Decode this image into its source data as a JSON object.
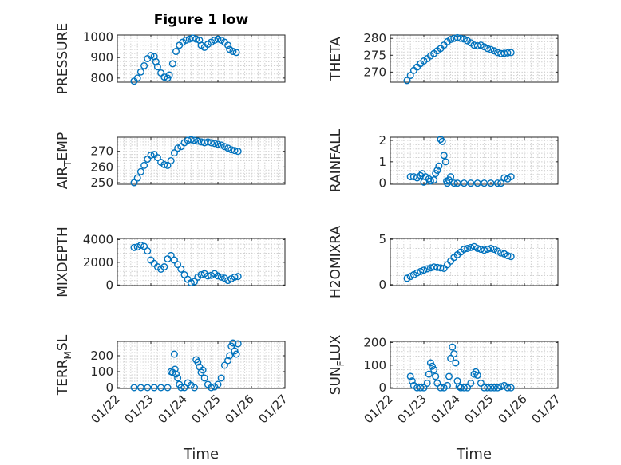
{
  "figure_title": "Figure 1 low",
  "chart_data": {
    "type": "scatter",
    "marker_color": "#0072BD",
    "grid": true,
    "x_ticks": [
      "01/22",
      "01/23",
      "01/24",
      "01/25",
      "01/26",
      "01/27"
    ],
    "x_range": [
      "01/22",
      "01/27"
    ],
    "panels": [
      {
        "ylabel": "PRESSURE",
        "ylabel_sub": "",
        "ylabel_tail": "",
        "ylim": [
          780,
          1010
        ],
        "yticks": [
          800,
          900,
          1000
        ],
        "show_xlabels": false,
        "title": "Figure 1 low",
        "points": [
          [
            0.5,
            785
          ],
          [
            0.6,
            800
          ],
          [
            0.7,
            830
          ],
          [
            0.8,
            860
          ],
          [
            0.9,
            895
          ],
          [
            1.0,
            910
          ],
          [
            1.1,
            905
          ],
          [
            1.15,
            880
          ],
          [
            1.2,
            855
          ],
          [
            1.3,
            825
          ],
          [
            1.4,
            805
          ],
          [
            1.5,
            800
          ],
          [
            1.55,
            815
          ],
          [
            1.65,
            870
          ],
          [
            1.75,
            930
          ],
          [
            1.85,
            960
          ],
          [
            1.95,
            975
          ],
          [
            2.05,
            985
          ],
          [
            2.15,
            990
          ],
          [
            2.25,
            995
          ],
          [
            2.35,
            990
          ],
          [
            2.45,
            985
          ],
          [
            2.5,
            960
          ],
          [
            2.6,
            950
          ],
          [
            2.7,
            965
          ],
          [
            2.8,
            975
          ],
          [
            2.9,
            985
          ],
          [
            3.0,
            990
          ],
          [
            3.1,
            985
          ],
          [
            3.2,
            975
          ],
          [
            3.3,
            960
          ],
          [
            3.35,
            940
          ],
          [
            3.45,
            930
          ],
          [
            3.55,
            925
          ]
        ]
      },
      {
        "ylabel": "THETA",
        "ylabel_sub": "",
        "ylabel_tail": "",
        "ylim": [
          267,
          281
        ],
        "yticks": [
          270,
          275,
          280
        ],
        "show_xlabels": false,
        "points": [
          [
            0.5,
            267.5
          ],
          [
            0.6,
            269
          ],
          [
            0.7,
            270.5
          ],
          [
            0.8,
            271.5
          ],
          [
            0.9,
            272.5
          ],
          [
            1.0,
            273.3
          ],
          [
            1.1,
            274
          ],
          [
            1.2,
            274.8
          ],
          [
            1.3,
            275.5
          ],
          [
            1.4,
            276.3
          ],
          [
            1.5,
            277
          ],
          [
            1.6,
            278
          ],
          [
            1.7,
            279
          ],
          [
            1.8,
            279.7
          ],
          [
            1.9,
            280
          ],
          [
            2.0,
            280.2
          ],
          [
            2.1,
            280
          ],
          [
            2.2,
            279.8
          ],
          [
            2.3,
            279.3
          ],
          [
            2.4,
            278.7
          ],
          [
            2.5,
            278
          ],
          [
            2.6,
            277.8
          ],
          [
            2.7,
            278
          ],
          [
            2.8,
            277.5
          ],
          [
            2.9,
            277
          ],
          [
            3.0,
            276.7
          ],
          [
            3.1,
            276.3
          ],
          [
            3.2,
            275.8
          ],
          [
            3.3,
            275.5
          ],
          [
            3.4,
            275.6
          ],
          [
            3.5,
            275.7
          ],
          [
            3.6,
            275.8
          ]
        ]
      },
      {
        "ylabel": "AIR",
        "ylabel_sub": "T",
        "ylabel_tail": "EMP",
        "ylim": [
          249,
          279
        ],
        "yticks": [
          250,
          260,
          270
        ],
        "show_xlabels": false,
        "points": [
          [
            0.5,
            250
          ],
          [
            0.6,
            253
          ],
          [
            0.7,
            257
          ],
          [
            0.8,
            261
          ],
          [
            0.9,
            265
          ],
          [
            1.0,
            267.5
          ],
          [
            1.1,
            268
          ],
          [
            1.2,
            266
          ],
          [
            1.3,
            263
          ],
          [
            1.4,
            261.5
          ],
          [
            1.5,
            261
          ],
          [
            1.6,
            264
          ],
          [
            1.7,
            269
          ],
          [
            1.8,
            272
          ],
          [
            1.9,
            273
          ],
          [
            2.0,
            275.5
          ],
          [
            2.1,
            277
          ],
          [
            2.2,
            277.5
          ],
          [
            2.3,
            277
          ],
          [
            2.4,
            276.5
          ],
          [
            2.5,
            276
          ],
          [
            2.6,
            275.5
          ],
          [
            2.7,
            276
          ],
          [
            2.8,
            275.5
          ],
          [
            2.9,
            275
          ],
          [
            3.0,
            274.5
          ],
          [
            3.1,
            274
          ],
          [
            3.2,
            273
          ],
          [
            3.3,
            272
          ],
          [
            3.4,
            271
          ],
          [
            3.5,
            270.5
          ],
          [
            3.6,
            270
          ]
        ]
      },
      {
        "ylabel": "RAINFALL",
        "ylabel_sub": "",
        "ylabel_tail": "",
        "ylim": [
          -0.05,
          2.15
        ],
        "yticks": [
          0,
          1,
          2
        ],
        "show_xlabels": false,
        "points": [
          [
            0.6,
            0.3
          ],
          [
            0.7,
            0.3
          ],
          [
            0.8,
            0.25
          ],
          [
            0.9,
            0.35
          ],
          [
            0.95,
            0.45
          ],
          [
            1.0,
            0.05
          ],
          [
            1.05,
            0.3
          ],
          [
            1.15,
            0.2
          ],
          [
            1.2,
            0.1
          ],
          [
            1.3,
            0.15
          ],
          [
            1.35,
            0.45
          ],
          [
            1.4,
            0.6
          ],
          [
            1.45,
            0.8
          ],
          [
            1.5,
            2.05
          ],
          [
            1.55,
            1.95
          ],
          [
            1.6,
            1.3
          ],
          [
            1.65,
            1.0
          ],
          [
            1.68,
            0.1
          ],
          [
            1.7,
            0.0
          ],
          [
            1.75,
            0.15
          ],
          [
            1.8,
            0.3
          ],
          [
            1.9,
            0.0
          ],
          [
            2.0,
            0.0
          ],
          [
            2.2,
            0.0
          ],
          [
            2.4,
            0.0
          ],
          [
            2.6,
            0.0
          ],
          [
            2.8,
            0.0
          ],
          [
            3.0,
            0.0
          ],
          [
            3.2,
            0.0
          ],
          [
            3.3,
            0.0
          ],
          [
            3.4,
            0.25
          ],
          [
            3.5,
            0.2
          ],
          [
            3.6,
            0.3
          ]
        ]
      },
      {
        "ylabel": "MIXDEPTH",
        "ylabel_sub": "",
        "ylabel_tail": "",
        "ylim": [
          -50,
          4100
        ],
        "yticks": [
          0,
          2000,
          4000
        ],
        "show_xlabels": false,
        "points": [
          [
            0.5,
            3300
          ],
          [
            0.6,
            3350
          ],
          [
            0.7,
            3500
          ],
          [
            0.8,
            3400
          ],
          [
            0.9,
            3000
          ],
          [
            1.0,
            2200
          ],
          [
            1.1,
            1900
          ],
          [
            1.2,
            1600
          ],
          [
            1.3,
            1400
          ],
          [
            1.4,
            1600
          ],
          [
            1.5,
            2300
          ],
          [
            1.6,
            2600
          ],
          [
            1.7,
            2200
          ],
          [
            1.8,
            1800
          ],
          [
            1.9,
            1400
          ],
          [
            2.0,
            900
          ],
          [
            2.1,
            500
          ],
          [
            2.2,
            200
          ],
          [
            2.3,
            300
          ],
          [
            2.4,
            700
          ],
          [
            2.5,
            900
          ],
          [
            2.6,
            1000
          ],
          [
            2.7,
            800
          ],
          [
            2.8,
            850
          ],
          [
            2.9,
            1000
          ],
          [
            3.0,
            800
          ],
          [
            3.1,
            700
          ],
          [
            3.2,
            600
          ],
          [
            3.3,
            400
          ],
          [
            3.4,
            550
          ],
          [
            3.5,
            700
          ],
          [
            3.6,
            750
          ]
        ]
      },
      {
        "ylabel": "H2OMIXRA",
        "ylabel_sub": "",
        "ylabel_tail": "",
        "ylim": [
          -0.1,
          5.1
        ],
        "yticks": [
          0,
          5
        ],
        "show_xlabels": false,
        "points": [
          [
            0.5,
            0.7
          ],
          [
            0.6,
            0.9
          ],
          [
            0.7,
            1.1
          ],
          [
            0.8,
            1.3
          ],
          [
            0.9,
            1.45
          ],
          [
            1.0,
            1.6
          ],
          [
            1.1,
            1.75
          ],
          [
            1.2,
            1.85
          ],
          [
            1.3,
            1.95
          ],
          [
            1.4,
            1.9
          ],
          [
            1.5,
            1.85
          ],
          [
            1.6,
            1.8
          ],
          [
            1.7,
            2.2
          ],
          [
            1.8,
            2.6
          ],
          [
            1.9,
            3.0
          ],
          [
            2.0,
            3.3
          ],
          [
            2.1,
            3.6
          ],
          [
            2.2,
            3.9
          ],
          [
            2.3,
            4.0
          ],
          [
            2.4,
            4.1
          ],
          [
            2.5,
            4.2
          ],
          [
            2.6,
            4.0
          ],
          [
            2.7,
            3.9
          ],
          [
            2.8,
            3.8
          ],
          [
            2.9,
            3.9
          ],
          [
            3.0,
            4.0
          ],
          [
            3.1,
            3.9
          ],
          [
            3.2,
            3.7
          ],
          [
            3.3,
            3.5
          ],
          [
            3.4,
            3.4
          ],
          [
            3.5,
            3.2
          ],
          [
            3.6,
            3.1
          ]
        ]
      },
      {
        "ylabel": "TERR",
        "ylabel_sub": "M",
        "ylabel_tail": "SL",
        "ylim": [
          -5,
          290
        ],
        "yticks": [
          0,
          100,
          200
        ],
        "show_xlabels": true,
        "points": [
          [
            0.5,
            0
          ],
          [
            0.7,
            0
          ],
          [
            0.9,
            0
          ],
          [
            1.1,
            0
          ],
          [
            1.3,
            0
          ],
          [
            1.5,
            0
          ],
          [
            1.6,
            100
          ],
          [
            1.65,
            95
          ],
          [
            1.7,
            210
          ],
          [
            1.72,
            115
          ],
          [
            1.75,
            85
          ],
          [
            1.8,
            60
          ],
          [
            1.85,
            20
          ],
          [
            1.9,
            0
          ],
          [
            2.0,
            0
          ],
          [
            2.1,
            30
          ],
          [
            2.2,
            15
          ],
          [
            2.3,
            0
          ],
          [
            2.35,
            175
          ],
          [
            2.4,
            160
          ],
          [
            2.45,
            130
          ],
          [
            2.5,
            95
          ],
          [
            2.55,
            110
          ],
          [
            2.6,
            60
          ],
          [
            2.7,
            20
          ],
          [
            2.8,
            0
          ],
          [
            2.9,
            5
          ],
          [
            3.0,
            20
          ],
          [
            3.1,
            60
          ],
          [
            3.2,
            140
          ],
          [
            3.3,
            170
          ],
          [
            3.35,
            200
          ],
          [
            3.4,
            260
          ],
          [
            3.45,
            280
          ],
          [
            3.5,
            230
          ],
          [
            3.55,
            210
          ],
          [
            3.6,
            275
          ]
        ]
      },
      {
        "ylabel": "SUN",
        "ylabel_sub": "F",
        "ylabel_tail": "LUX",
        "ylim": [
          -3,
          205
        ],
        "yticks": [
          0,
          100,
          200
        ],
        "show_xlabels": true,
        "points": [
          [
            0.6,
            50
          ],
          [
            0.65,
            30
          ],
          [
            0.7,
            10
          ],
          [
            0.8,
            0
          ],
          [
            0.9,
            0
          ],
          [
            1.0,
            0
          ],
          [
            1.1,
            20
          ],
          [
            1.15,
            60
          ],
          [
            1.2,
            110
          ],
          [
            1.25,
            95
          ],
          [
            1.3,
            80
          ],
          [
            1.35,
            50
          ],
          [
            1.4,
            20
          ],
          [
            1.5,
            0
          ],
          [
            1.6,
            0
          ],
          [
            1.7,
            10
          ],
          [
            1.75,
            50
          ],
          [
            1.8,
            130
          ],
          [
            1.85,
            180
          ],
          [
            1.9,
            150
          ],
          [
            1.95,
            110
          ],
          [
            2.0,
            30
          ],
          [
            2.05,
            5
          ],
          [
            2.1,
            0
          ],
          [
            2.2,
            0
          ],
          [
            2.3,
            0
          ],
          [
            2.4,
            20
          ],
          [
            2.5,
            60
          ],
          [
            2.55,
            70
          ],
          [
            2.6,
            55
          ],
          [
            2.7,
            20
          ],
          [
            2.8,
            0
          ],
          [
            2.9,
            0
          ],
          [
            3.0,
            0
          ],
          [
            3.1,
            0
          ],
          [
            3.2,
            0
          ],
          [
            3.3,
            5
          ],
          [
            3.4,
            10
          ],
          [
            3.5,
            0
          ],
          [
            3.6,
            0
          ]
        ]
      }
    ]
  },
  "xlabel_left": "Time",
  "xlabel_right": "Time"
}
